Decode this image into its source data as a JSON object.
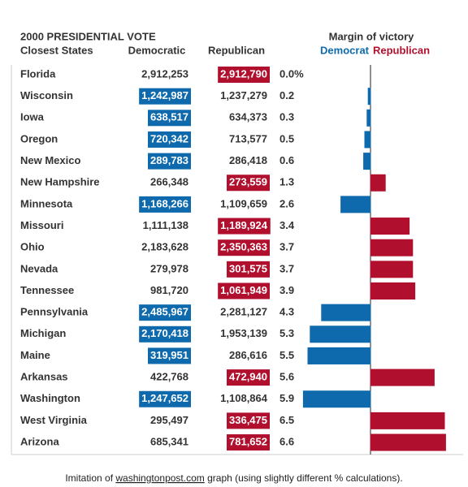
{
  "chart_data": {
    "type": "margin-table",
    "title": "2000 PRESIDENTIAL VOTE",
    "subtitle": "Closest States",
    "margin_title": "Margin of victory",
    "categories": [
      "Florida",
      "Wisconsin",
      "Iowa",
      "Oregon",
      "New Mexico",
      "New Hampshire",
      "Minnesota",
      "Missouri",
      "Ohio",
      "Nevada",
      "Tennessee",
      "Pennsylvania",
      "Michigan",
      "Maine",
      "Arkansas",
      "Washington",
      "West Virginia",
      "Arizona"
    ],
    "series": [
      {
        "name": "Democratic",
        "legend": "Democrat",
        "color": "#0e6aad",
        "values": [
          2912253,
          1242987,
          638517,
          720342,
          289783,
          266348,
          1168266,
          1111138,
          2183628,
          279978,
          981720,
          2485967,
          2170418,
          319951,
          422768,
          1247652,
          295497,
          685341
        ],
        "value_labels": [
          "2,912,253",
          "1,242,987",
          "638,517",
          "720,342",
          "289,783",
          "266,348",
          "1,168,266",
          "1,111,138",
          "2,183,628",
          "279,978",
          "981,720",
          "2,485,967",
          "2,170,418",
          "319,951",
          "422,768",
          "1,247,652",
          "295,497",
          "685,341"
        ]
      },
      {
        "name": "Republican",
        "legend": "Republican",
        "color": "#b0102e",
        "values": [
          2912790,
          1237279,
          634373,
          713577,
          286418,
          273559,
          1109659,
          1189924,
          2350363,
          301575,
          1061949,
          2281127,
          1953139,
          286616,
          472940,
          1108864,
          336475,
          781652
        ],
        "value_labels": [
          "2,912,790",
          "1,237,279",
          "634,373",
          "713,577",
          "286,418",
          "273,559",
          "1,109,659",
          "1,189,924",
          "2,350,363",
          "301,575",
          "1,061,949",
          "2,281,127",
          "1,953,139",
          "286,616",
          "472,940",
          "1,108,864",
          "336,475",
          "781,652"
        ]
      }
    ],
    "margin": {
      "values": [
        0.0,
        0.2,
        0.3,
        0.5,
        0.6,
        1.3,
        2.6,
        3.4,
        3.7,
        3.7,
        3.9,
        4.3,
        5.3,
        5.5,
        5.6,
        5.9,
        6.5,
        6.6
      ],
      "value_labels": [
        "0.0%",
        "0.2",
        "0.3",
        "0.5",
        "0.6",
        "1.3",
        "2.6",
        "3.4",
        "3.7",
        "3.7",
        "3.9",
        "4.3",
        "5.3",
        "5.5",
        "5.6",
        "5.9",
        "6.5",
        "6.6"
      ]
    },
    "footer": {
      "prefix": "Imitation of ",
      "link": "washingtonpost.com",
      "suffix": " graph   (using slightly different % calculations)."
    }
  }
}
